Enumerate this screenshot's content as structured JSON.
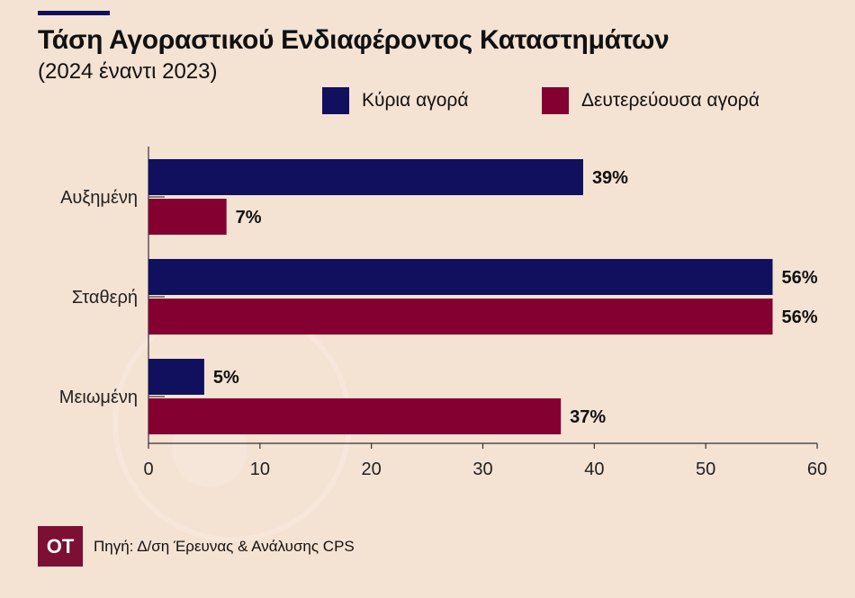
{
  "colors": {
    "background": "#f4e2d3",
    "primary_market": "#10105e",
    "secondary_market": "#830031",
    "logo_bg": "#7c0f33"
  },
  "chart_data": {
    "type": "bar",
    "orientation": "horizontal",
    "title": "Τάση Αγοραστικού Ενδιαφέροντος Καταστημάτων",
    "subtitle": "(2024 έναντι 2023)",
    "categories": [
      "Αυξημένη",
      "Σταθερή",
      "Μειωμένη"
    ],
    "series": [
      {
        "name": "Κύρια αγορά",
        "values": [
          39,
          56,
          5
        ],
        "labels": [
          "39%",
          "56%",
          "5%"
        ]
      },
      {
        "name": "Δευτερεύουσα αγορά",
        "values": [
          7,
          56,
          37
        ],
        "labels": [
          "7%",
          "56%",
          "37%"
        ]
      }
    ],
    "xlim": [
      0,
      60
    ],
    "xticks": [
      "0",
      "10",
      "20",
      "30",
      "40",
      "50",
      "60"
    ],
    "legend_position": "top-right",
    "grid": false
  },
  "footer": {
    "logo": "OT",
    "source": "Πηγή: Δ/ση Έρευνας & Ανάλυσης CPS"
  }
}
